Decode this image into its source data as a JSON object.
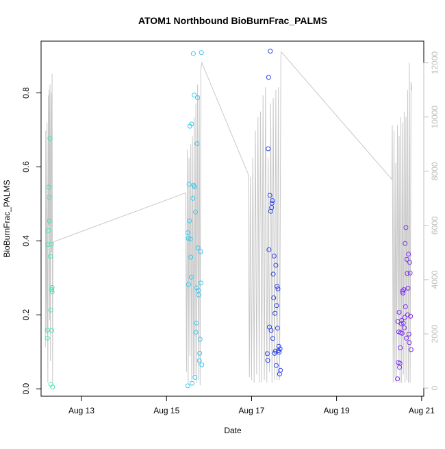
{
  "chart_data": {
    "type": "scatter",
    "title": "ATOM1 Northbound BioBurnFrac_PALMS",
    "xlabel": "Date",
    "ylabel": "BioBurnFrac_PALMS",
    "x_unit": "days (August)",
    "x_range": [
      12.05,
      21.05
    ],
    "ylim": [
      -0.02,
      0.94
    ],
    "y_ticks": [
      0.0,
      0.2,
      0.4,
      0.6,
      0.8
    ],
    "x_ticks": [
      13,
      15,
      17,
      19,
      21
    ],
    "x_tick_labels": [
      "Aug 13",
      "Aug 15",
      "Aug 17",
      "Aug 19",
      "Aug 21"
    ],
    "y2lim": [
      -300,
      12800
    ],
    "y2_ticks": [
      0,
      2000,
      4000,
      6000,
      8000,
      10000,
      12000
    ],
    "y2_color": "#bdbdbd",
    "line_color": "#c8c8c8",
    "grid": false,
    "legend": "none",
    "series": [
      {
        "color": "#3ee6b0",
        "points": [
          [
            12.2,
            0.159
          ],
          [
            12.2,
            0.137
          ],
          [
            12.21,
            0.39
          ],
          [
            12.22,
            0.428
          ],
          [
            12.23,
            0.545
          ],
          [
            12.24,
            0.518
          ],
          [
            12.25,
            0.454
          ],
          [
            12.26,
            0.677
          ],
          [
            12.27,
            0.358
          ],
          [
            12.28,
            0.012
          ],
          [
            12.28,
            0.213
          ],
          [
            12.29,
            0.391
          ],
          [
            12.3,
            0.158
          ],
          [
            12.3,
            0.268
          ],
          [
            12.31,
            0.274
          ],
          [
            12.31,
            0.262
          ],
          [
            12.32,
            0.005
          ]
        ]
      },
      {
        "color": "#33c8f0",
        "points": [
          [
            15.5,
            0.008
          ],
          [
            15.5,
            0.422
          ],
          [
            15.51,
            0.407
          ],
          [
            15.52,
            0.282
          ],
          [
            15.53,
            0.553
          ],
          [
            15.54,
            0.454
          ],
          [
            15.55,
            0.71
          ],
          [
            15.56,
            0.405
          ],
          [
            15.57,
            0.356
          ],
          [
            15.58,
            0.302
          ],
          [
            15.6,
            0.015
          ],
          [
            15.62,
            0.515
          ],
          [
            15.63,
            0.906
          ],
          [
            15.64,
            0.55
          ],
          [
            15.65,
            0.794
          ],
          [
            15.66,
            0.546
          ],
          [
            15.67,
            0.031
          ],
          [
            15.68,
            0.478
          ],
          [
            15.69,
            0.153
          ],
          [
            15.7,
            0.178
          ],
          [
            15.71,
            0.273
          ],
          [
            15.72,
            0.663
          ],
          [
            15.73,
            0.787
          ],
          [
            15.74,
            0.381
          ],
          [
            15.75,
            0.266
          ],
          [
            15.76,
            0.254
          ],
          [
            15.77,
            0.076
          ],
          [
            15.78,
            0.096
          ],
          [
            15.79,
            0.134
          ],
          [
            15.8,
            0.371
          ],
          [
            15.81,
            0.286
          ],
          [
            15.82,
            0.909
          ],
          [
            15.83,
            0.065
          ],
          [
            15.59,
            0.716
          ]
        ]
      },
      {
        "color": "#2a40e8",
        "points": [
          [
            17.37,
            0.095
          ],
          [
            17.38,
            0.077
          ],
          [
            17.39,
            0.649
          ],
          [
            17.4,
            0.842
          ],
          [
            17.41,
            0.376
          ],
          [
            17.42,
            0.167
          ],
          [
            17.43,
            0.523
          ],
          [
            17.44,
            0.913
          ],
          [
            17.45,
            0.48
          ],
          [
            17.46,
            0.158
          ],
          [
            17.47,
            0.49
          ],
          [
            17.48,
            0.502
          ],
          [
            17.49,
            0.509
          ],
          [
            17.5,
            0.136
          ],
          [
            17.51,
            0.31
          ],
          [
            17.52,
            0.246
          ],
          [
            17.53,
            0.359
          ],
          [
            17.54,
            0.096
          ],
          [
            17.55,
            0.204
          ],
          [
            17.56,
            0.102
          ],
          [
            17.57,
            0.334
          ],
          [
            17.58,
            0.063
          ],
          [
            17.59,
            0.225
          ],
          [
            17.6,
            0.277
          ],
          [
            17.61,
            0.164
          ],
          [
            17.62,
            0.27
          ],
          [
            17.63,
            0.103
          ],
          [
            17.64,
            0.115
          ],
          [
            17.65,
            0.099
          ],
          [
            17.66,
            0.04
          ],
          [
            17.67,
            0.108
          ],
          [
            17.68,
            0.05
          ]
        ]
      },
      {
        "color": "#7a2cf0",
        "points": [
          [
            20.43,
            0.027
          ],
          [
            20.44,
            0.182
          ],
          [
            20.45,
            0.071
          ],
          [
            20.46,
            0.154
          ],
          [
            20.47,
            0.207
          ],
          [
            20.48,
            0.058
          ],
          [
            20.49,
            0.069
          ],
          [
            20.5,
            0.111
          ],
          [
            20.51,
            0.152
          ],
          [
            20.52,
            0.176
          ],
          [
            20.53,
            0.185
          ],
          [
            20.54,
            0.15
          ],
          [
            20.55,
            0.264
          ],
          [
            20.56,
            0.259
          ],
          [
            20.57,
            0.178
          ],
          [
            20.58,
            0.268
          ],
          [
            20.59,
            0.165
          ],
          [
            20.6,
            0.193
          ],
          [
            20.61,
            0.393
          ],
          [
            20.62,
            0.222
          ],
          [
            20.63,
            0.436
          ],
          [
            20.64,
            0.137
          ],
          [
            20.65,
            0.35
          ],
          [
            20.66,
            0.312
          ],
          [
            20.67,
            0.2
          ],
          [
            20.68,
            0.272
          ],
          [
            20.69,
            0.364
          ],
          [
            20.7,
            0.148
          ],
          [
            20.71,
            0.125
          ],
          [
            20.72,
            0.342
          ],
          [
            20.73,
            0.313
          ],
          [
            20.74,
            0.196
          ],
          [
            20.75,
            0.106
          ]
        ]
      }
    ],
    "secondary_line": [
      [
        12.15,
        1500
      ],
      [
        12.16,
        9500
      ],
      [
        12.17,
        4000
      ],
      [
        12.18,
        2000
      ],
      [
        12.19,
        9800
      ],
      [
        12.2,
        3000
      ],
      [
        12.21,
        200
      ],
      [
        12.22,
        10800
      ],
      [
        12.23,
        6000
      ],
      [
        12.24,
        11000
      ],
      [
        12.25,
        2500
      ],
      [
        12.26,
        11200
      ],
      [
        12.27,
        1000
      ],
      [
        12.28,
        9000
      ],
      [
        12.29,
        10900
      ],
      [
        12.3,
        5000
      ],
      [
        12.31,
        11600
      ],
      [
        12.32,
        200
      ],
      [
        12.33,
        5200
      ],
      [
        12.34,
        5300
      ],
      [
        12.35,
        5400
      ],
      [
        15.45,
        7200
      ],
      [
        15.47,
        600
      ],
      [
        15.49,
        8800
      ],
      [
        15.51,
        200
      ],
      [
        15.53,
        8500
      ],
      [
        15.55,
        1200
      ],
      [
        15.57,
        9000
      ],
      [
        15.59,
        300
      ],
      [
        15.61,
        9300
      ],
      [
        15.63,
        400
      ],
      [
        15.65,
        10000
      ],
      [
        15.67,
        500
      ],
      [
        15.69,
        10500
      ],
      [
        15.71,
        200
      ],
      [
        15.73,
        11200
      ],
      [
        15.75,
        300
      ],
      [
        15.77,
        10800
      ],
      [
        15.79,
        100
      ],
      [
        15.81,
        11800
      ],
      [
        15.83,
        12000
      ],
      [
        16.92,
        7900
      ],
      [
        16.95,
        400
      ],
      [
        16.97,
        7800
      ],
      [
        17.0,
        300
      ],
      [
        17.03,
        8500
      ],
      [
        17.06,
        200
      ],
      [
        17.09,
        9500
      ],
      [
        17.12,
        500
      ],
      [
        17.15,
        10000
      ],
      [
        17.18,
        200
      ],
      [
        17.21,
        10200
      ],
      [
        17.24,
        200
      ],
      [
        17.27,
        10800
      ],
      [
        17.3,
        300
      ],
      [
        17.33,
        11100
      ],
      [
        17.36,
        200
      ],
      [
        17.39,
        8500
      ],
      [
        17.42,
        600
      ],
      [
        17.45,
        10500
      ],
      [
        17.48,
        200
      ],
      [
        17.51,
        10700
      ],
      [
        17.54,
        300
      ],
      [
        17.57,
        11000
      ],
      [
        17.6,
        300
      ],
      [
        17.63,
        11100
      ],
      [
        17.66,
        300
      ],
      [
        17.69,
        12300
      ],
      [
        17.7,
        12400
      ],
      [
        20.3,
        7700
      ],
      [
        20.31,
        9700
      ],
      [
        20.33,
        200
      ],
      [
        20.35,
        9500
      ],
      [
        20.37,
        400
      ],
      [
        20.39,
        8300
      ],
      [
        20.41,
        200
      ],
      [
        20.43,
        9700
      ],
      [
        20.45,
        800
      ],
      [
        20.47,
        9300
      ],
      [
        20.49,
        200
      ],
      [
        20.51,
        10000
      ],
      [
        20.53,
        200
      ],
      [
        20.55,
        9800
      ],
      [
        20.57,
        500
      ],
      [
        20.59,
        10200
      ],
      [
        20.61,
        200
      ],
      [
        20.63,
        10000
      ],
      [
        20.65,
        300
      ],
      [
        20.67,
        11000
      ],
      [
        20.69,
        200
      ],
      [
        20.71,
        12000
      ],
      [
        20.73,
        200
      ],
      [
        20.75,
        11300
      ],
      [
        20.77,
        11000
      ]
    ]
  }
}
